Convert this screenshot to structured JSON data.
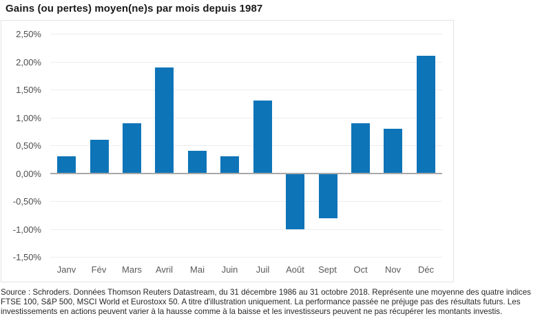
{
  "header": {
    "title": "Gains (ou pertes) moyen(ne)s par mois depuis 1987"
  },
  "chart_data": {
    "type": "bar",
    "title": "Gains (ou pertes) moyen(ne)s par mois depuis 1987",
    "categories": [
      "Janv",
      "Fév",
      "Mars",
      "Avril",
      "Mai",
      "Juin",
      "Juil",
      "Août",
      "Sept",
      "Oct",
      "Nov",
      "Déc"
    ],
    "values": [
      0.3,
      0.6,
      0.9,
      1.9,
      0.4,
      0.3,
      1.3,
      -1.0,
      -0.8,
      0.9,
      0.8,
      2.1
    ],
    "unit": "%",
    "xlabel": "",
    "ylabel": "",
    "ylim": [
      -1.5,
      2.5
    ],
    "yticks": [
      2.5,
      2.0,
      1.5,
      1.0,
      0.5,
      0.0,
      -0.5,
      -1.0,
      -1.5
    ],
    "ytick_labels": [
      "2,50%",
      "2,00%",
      "1,50%",
      "1,00%",
      "0,50%",
      "0,00%",
      "-0,50%",
      "-1,00%",
      "-1,50%"
    ],
    "grid": true,
    "legend": false,
    "bar_color": "#0e74b8"
  },
  "footer": {
    "disclaimer": "Source : Schroders. Données Thomson Reuters Datastream, du 31 décembre 1986 au 31 octobre 2018. Représente une moyenne des quatre indices FTSE 100, S&P 500, MSCI World et Eurostoxx 50. A titre d'illustration uniquement. La performance passée ne préjuge pas des résultats futurs. Les investissements en actions peuvent varier à la hausse comme à la baisse et les investisseurs peuvent ne pas récupérer les montants investis."
  }
}
